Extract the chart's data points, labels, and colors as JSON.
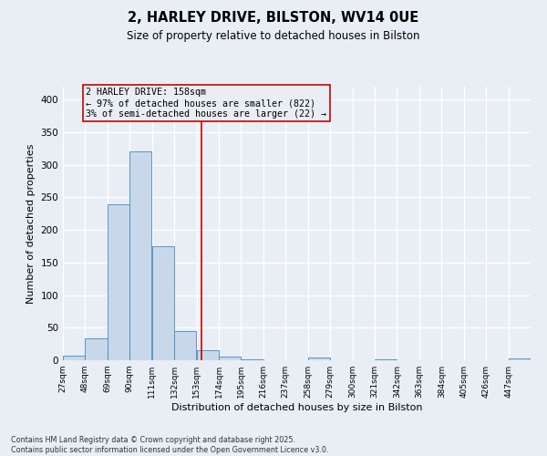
{
  "title": "2, HARLEY DRIVE, BILSTON, WV14 0UE",
  "subtitle": "Size of property relative to detached houses in Bilston",
  "xlabel": "Distribution of detached houses by size in Bilston",
  "ylabel": "Number of detached properties",
  "bin_labels": [
    "27sqm",
    "48sqm",
    "69sqm",
    "90sqm",
    "111sqm",
    "132sqm",
    "153sqm",
    "174sqm",
    "195sqm",
    "216sqm",
    "237sqm",
    "258sqm",
    "279sqm",
    "300sqm",
    "321sqm",
    "342sqm",
    "363sqm",
    "384sqm",
    "405sqm",
    "426sqm",
    "447sqm"
  ],
  "bin_edges": [
    27,
    48,
    69,
    90,
    111,
    132,
    153,
    174,
    195,
    216,
    237,
    258,
    279,
    300,
    321,
    342,
    363,
    384,
    405,
    426,
    447
  ],
  "bar_heights": [
    7,
    33,
    240,
    320,
    175,
    45,
    15,
    6,
    2,
    0,
    0,
    4,
    0,
    0,
    2,
    0,
    0,
    0,
    0,
    0,
    3
  ],
  "bar_color": "#c8d8ea",
  "bar_edge_color": "#4488bb",
  "redline_x": 158,
  "annotation_text": "2 HARLEY DRIVE: 158sqm\n← 97% of detached houses are smaller (822)\n3% of semi-detached houses are larger (22) →",
  "annotation_box_color": "#cc0000",
  "background_color": "#e8eef4",
  "plot_bg_color": "#e8eef4",
  "grid_color": "#ffffff",
  "footer_line1": "Contains HM Land Registry data © Crown copyright and database right 2025.",
  "footer_line2": "Contains public sector information licensed under the Open Government Licence v3.0.",
  "ylim": [
    0,
    420
  ],
  "yticks": [
    0,
    50,
    100,
    150,
    200,
    250,
    300,
    350,
    400
  ]
}
